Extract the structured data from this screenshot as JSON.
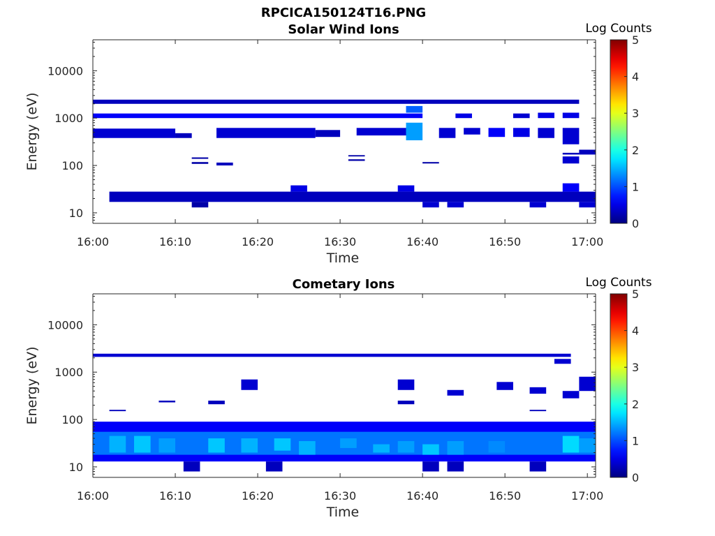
{
  "figure": {
    "title": "RPCICA150124T16.PNG"
  },
  "colorbar": {
    "label": "Log Counts",
    "ticks": [
      "0",
      "1",
      "2",
      "3",
      "4",
      "5"
    ],
    "range": [
      0,
      5
    ],
    "colormap": "jet"
  },
  "chart_data": [
    {
      "type": "heatmap",
      "title": "Solar Wind Ions",
      "xlabel": "Time",
      "ylabel": "Energy (eV)",
      "xticks": [
        "16:00",
        "16:10",
        "16:20",
        "16:30",
        "16:40",
        "16:50",
        "17:00"
      ],
      "yticks": [
        "10",
        "100",
        "1000",
        "10000"
      ],
      "ylim": [
        6,
        45000
      ],
      "yscale": "log",
      "xlim": [
        "16:00",
        "17:01"
      ],
      "cells": [
        {
          "t0": "16:02",
          "t1": "17:01",
          "e0": 17,
          "e1": 28,
          "v": 0.3
        },
        {
          "t0": "16:12",
          "t1": "16:14",
          "e0": 13,
          "e1": 17,
          "v": 0.2
        },
        {
          "t0": "16:24",
          "t1": "16:26",
          "e0": 28,
          "e1": 38,
          "v": 0.5
        },
        {
          "t0": "16:37",
          "t1": "16:39",
          "e0": 28,
          "e1": 38,
          "v": 0.5
        },
        {
          "t0": "16:40",
          "t1": "16:42",
          "e0": 13,
          "e1": 17,
          "v": 0.4
        },
        {
          "t0": "16:43",
          "t1": "16:45",
          "e0": 13,
          "e1": 17,
          "v": 0.4
        },
        {
          "t0": "16:53",
          "t1": "16:55",
          "e0": 13,
          "e1": 17,
          "v": 0.4
        },
        {
          "t0": "16:57",
          "t1": "16:59",
          "e0": 28,
          "e1": 42,
          "v": 0.6
        },
        {
          "t0": "16:59",
          "t1": "17:01",
          "e0": 13,
          "e1": 17,
          "v": 0.4
        },
        {
          "t0": "16:00",
          "t1": "16:10",
          "e0": 380,
          "e1": 600,
          "v": 0.4
        },
        {
          "t0": "16:10",
          "t1": "16:12",
          "e0": 380,
          "e1": 480,
          "v": 0.3
        },
        {
          "t0": "16:15",
          "t1": "16:27",
          "e0": 380,
          "e1": 620,
          "v": 0.4
        },
        {
          "t0": "16:27",
          "t1": "16:30",
          "e0": 400,
          "e1": 560,
          "v": 0.3
        },
        {
          "t0": "16:32",
          "t1": "16:38",
          "e0": 430,
          "e1": 620,
          "v": 0.4
        },
        {
          "t0": "16:38",
          "t1": "16:40",
          "e0": 340,
          "e1": 800,
          "v": 1.4
        },
        {
          "t0": "16:42",
          "t1": "16:44",
          "e0": 380,
          "e1": 620,
          "v": 0.4
        },
        {
          "t0": "16:45",
          "t1": "16:47",
          "e0": 450,
          "e1": 620,
          "v": 0.4
        },
        {
          "t0": "16:48",
          "t1": "16:50",
          "e0": 400,
          "e1": 620,
          "v": 0.6
        },
        {
          "t0": "16:51",
          "t1": "16:53",
          "e0": 400,
          "e1": 620,
          "v": 0.5
        },
        {
          "t0": "16:54",
          "t1": "16:56",
          "e0": 380,
          "e1": 620,
          "v": 0.4
        },
        {
          "t0": "16:57",
          "t1": "16:59",
          "e0": 280,
          "e1": 620,
          "v": 0.4
        },
        {
          "t0": "16:00",
          "t1": "16:40",
          "e0": 1000,
          "e1": 1250,
          "v": 0.6
        },
        {
          "t0": "16:44",
          "t1": "16:46",
          "e0": 1000,
          "e1": 1250,
          "v": 0.5
        },
        {
          "t0": "16:51",
          "t1": "16:53",
          "e0": 1000,
          "e1": 1250,
          "v": 0.4
        },
        {
          "t0": "16:54",
          "t1": "16:56",
          "e0": 1000,
          "e1": 1300,
          "v": 0.5
        },
        {
          "t0": "16:57",
          "t1": "16:59",
          "e0": 1000,
          "e1": 1300,
          "v": 0.5
        },
        {
          "t0": "16:00",
          "t1": "16:59",
          "e0": 2000,
          "e1": 2450,
          "v": 0.3
        },
        {
          "t0": "16:38",
          "t1": "16:40",
          "e0": 1300,
          "e1": 1800,
          "v": 1.1
        },
        {
          "t0": "16:12",
          "t1": "16:14",
          "e0": 108,
          "e1": 118,
          "v": 0.2
        },
        {
          "t0": "16:12",
          "t1": "16:14",
          "e0": 138,
          "e1": 148,
          "v": 0.2
        },
        {
          "t0": "16:15",
          "t1": "16:17",
          "e0": 100,
          "e1": 115,
          "v": 0.3
        },
        {
          "t0": "16:31",
          "t1": "16:33",
          "e0": 125,
          "e1": 135,
          "v": 0.2
        },
        {
          "t0": "16:31",
          "t1": "16:33",
          "e0": 155,
          "e1": 165,
          "v": 0.2
        },
        {
          "t0": "16:40",
          "t1": "16:42",
          "e0": 110,
          "e1": 118,
          "v": 0.2
        },
        {
          "t0": "16:57",
          "t1": "16:59",
          "e0": 110,
          "e1": 155,
          "v": 0.4
        },
        {
          "t0": "16:57",
          "t1": "16:59",
          "e0": 170,
          "e1": 185,
          "v": 0.3
        },
        {
          "t0": "16:59",
          "t1": "17:01",
          "e0": 170,
          "e1": 215,
          "v": 0.3
        }
      ]
    },
    {
      "type": "heatmap",
      "title": "Cometary Ions",
      "xlabel": "Time",
      "ylabel": "Energy (eV)",
      "xticks": [
        "16:00",
        "16:10",
        "16:20",
        "16:30",
        "16:40",
        "16:50",
        "17:00"
      ],
      "yticks": [
        "10",
        "100",
        "1000",
        "10000"
      ],
      "ylim": [
        6,
        45000
      ],
      "yscale": "log",
      "xlim": [
        "16:00",
        "17:01"
      ],
      "cells": [
        {
          "t0": "16:00",
          "t1": "17:01",
          "e0": 13,
          "e1": 90,
          "v": 0.6
        },
        {
          "t0": "16:00",
          "t1": "17:01",
          "e0": 18,
          "e1": 55,
          "v": 1.2
        },
        {
          "t0": "16:02",
          "t1": "16:04",
          "e0": 20,
          "e1": 45,
          "v": 1.5
        },
        {
          "t0": "16:05",
          "t1": "16:07",
          "e0": 20,
          "e1": 45,
          "v": 1.6
        },
        {
          "t0": "16:08",
          "t1": "16:10",
          "e0": 20,
          "e1": 40,
          "v": 1.4
        },
        {
          "t0": "16:14",
          "t1": "16:16",
          "e0": 20,
          "e1": 40,
          "v": 1.6
        },
        {
          "t0": "16:18",
          "t1": "16:20",
          "e0": 20,
          "e1": 40,
          "v": 1.5
        },
        {
          "t0": "16:22",
          "t1": "16:24",
          "e0": 22,
          "e1": 40,
          "v": 1.6
        },
        {
          "t0": "16:25",
          "t1": "16:27",
          "e0": 18,
          "e1": 35,
          "v": 1.5
        },
        {
          "t0": "16:30",
          "t1": "16:32",
          "e0": 25,
          "e1": 40,
          "v": 1.4
        },
        {
          "t0": "16:34",
          "t1": "16:36",
          "e0": 20,
          "e1": 30,
          "v": 1.5
        },
        {
          "t0": "16:37",
          "t1": "16:39",
          "e0": 20,
          "e1": 35,
          "v": 1.4
        },
        {
          "t0": "16:40",
          "t1": "16:42",
          "e0": 18,
          "e1": 30,
          "v": 1.6
        },
        {
          "t0": "16:43",
          "t1": "16:45",
          "e0": 18,
          "e1": 35,
          "v": 1.4
        },
        {
          "t0": "16:48",
          "t1": "16:50",
          "e0": 20,
          "e1": 35,
          "v": 1.3
        },
        {
          "t0": "16:57",
          "t1": "16:59",
          "e0": 20,
          "e1": 45,
          "v": 1.7
        },
        {
          "t0": "16:59",
          "t1": "17:01",
          "e0": 20,
          "e1": 40,
          "v": 1.4
        },
        {
          "t0": "16:11",
          "t1": "16:13",
          "e0": 8,
          "e1": 13,
          "v": 0.3
        },
        {
          "t0": "16:21",
          "t1": "16:23",
          "e0": 8,
          "e1": 13,
          "v": 0.3
        },
        {
          "t0": "16:40",
          "t1": "16:42",
          "e0": 8,
          "e1": 13,
          "v": 0.3
        },
        {
          "t0": "16:43",
          "t1": "16:45",
          "e0": 8,
          "e1": 13,
          "v": 0.3
        },
        {
          "t0": "16:53",
          "t1": "16:55",
          "e0": 8,
          "e1": 13,
          "v": 0.3
        },
        {
          "t0": "16:00",
          "t1": "16:58",
          "e0": 2100,
          "e1": 2450,
          "v": 0.4
        },
        {
          "t0": "16:18",
          "t1": "16:20",
          "e0": 420,
          "e1": 700,
          "v": 0.4
        },
        {
          "t0": "16:37",
          "t1": "16:39",
          "e0": 420,
          "e1": 700,
          "v": 0.4
        },
        {
          "t0": "16:43",
          "t1": "16:45",
          "e0": 320,
          "e1": 420,
          "v": 0.4
        },
        {
          "t0": "16:49",
          "t1": "16:51",
          "e0": 420,
          "e1": 620,
          "v": 0.4
        },
        {
          "t0": "16:53",
          "t1": "16:55",
          "e0": 350,
          "e1": 480,
          "v": 0.4
        },
        {
          "t0": "16:56",
          "t1": "16:58",
          "e0": 1500,
          "e1": 1900,
          "v": 0.4
        },
        {
          "t0": "16:57",
          "t1": "16:59",
          "e0": 280,
          "e1": 400,
          "v": 0.4
        },
        {
          "t0": "16:59",
          "t1": "17:01",
          "e0": 400,
          "e1": 800,
          "v": 0.4
        },
        {
          "t0": "16:14",
          "t1": "16:16",
          "e0": 210,
          "e1": 250,
          "v": 0.3
        },
        {
          "t0": "16:08",
          "t1": "16:10",
          "e0": 230,
          "e1": 250,
          "v": 0.3
        },
        {
          "t0": "16:37",
          "t1": "16:39",
          "e0": 210,
          "e1": 250,
          "v": 0.3
        },
        {
          "t0": "16:02",
          "t1": "16:04",
          "e0": 150,
          "e1": 160,
          "v": 0.3
        },
        {
          "t0": "16:53",
          "t1": "16:55",
          "e0": 150,
          "e1": 160,
          "v": 0.3
        }
      ]
    }
  ]
}
